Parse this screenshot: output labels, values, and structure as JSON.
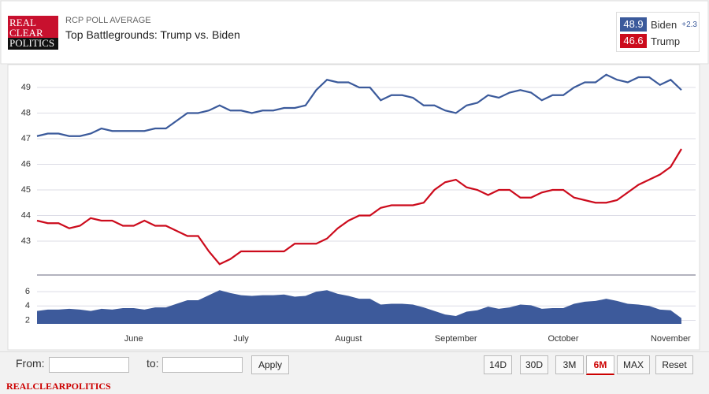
{
  "header": {
    "logo": [
      "REAL",
      "CLEAR",
      "POLITICS"
    ],
    "kicker": "RCP POLL AVERAGE",
    "title": "Top Battlegrounds: Trump vs. Biden"
  },
  "legend": {
    "spread": {
      "value": 2.3,
      "label": "+2.3"
    }
  },
  "chart_data": [
    {
      "type": "line",
      "series": [
        {
          "name": "Biden",
          "color": "#3b5a9b",
          "values": [
            47.1,
            47.2,
            47.2,
            47.1,
            47.1,
            47.2,
            47.4,
            47.3,
            47.3,
            47.3,
            47.3,
            47.4,
            47.4,
            47.7,
            48.0,
            48.0,
            48.1,
            48.3,
            48.1,
            48.1,
            48.0,
            48.1,
            48.1,
            48.2,
            48.2,
            48.3,
            48.9,
            49.3,
            49.2,
            49.2,
            49.0,
            49.0,
            48.5,
            48.7,
            48.7,
            48.6,
            48.3,
            48.3,
            48.1,
            48.0,
            48.3,
            48.4,
            48.7,
            48.6,
            48.8,
            48.9,
            48.8,
            48.5,
            48.7,
            48.7,
            49.0,
            49.2,
            49.2,
            49.5,
            49.3,
            49.2,
            49.4,
            49.4,
            49.1,
            49.3,
            48.9
          ]
        },
        {
          "name": "Trump",
          "color": "#cc0b1c",
          "values": [
            43.8,
            43.7,
            43.7,
            43.5,
            43.6,
            43.9,
            43.8,
            43.8,
            43.6,
            43.6,
            43.8,
            43.6,
            43.6,
            43.4,
            43.2,
            43.2,
            42.6,
            42.1,
            42.3,
            42.6,
            42.6,
            42.6,
            42.6,
            42.6,
            42.9,
            42.9,
            42.9,
            43.1,
            43.5,
            43.8,
            44.0,
            44.0,
            44.3,
            44.4,
            44.4,
            44.4,
            44.5,
            45.0,
            45.3,
            45.4,
            45.1,
            45.0,
            44.8,
            45.0,
            45.0,
            44.7,
            44.7,
            44.9,
            45.0,
            45.0,
            44.7,
            44.6,
            44.5,
            44.5,
            44.6,
            44.9,
            45.2,
            45.4,
            45.6,
            45.9,
            46.6
          ]
        }
      ],
      "ylim": [
        41.8,
        49.8
      ],
      "yticks": [
        43,
        44,
        45,
        46,
        47,
        48,
        49
      ],
      "grid": true
    },
    {
      "type": "area",
      "color": "#3d5a9b",
      "categories": [
        null,
        null,
        null,
        null,
        null,
        null,
        null,
        null,
        null,
        "June",
        null,
        null,
        null,
        null,
        null,
        null,
        null,
        null,
        null,
        "July",
        null,
        null,
        null,
        null,
        null,
        null,
        null,
        null,
        null,
        "August",
        null,
        null,
        null,
        null,
        null,
        null,
        null,
        null,
        null,
        "September",
        null,
        null,
        null,
        null,
        null,
        null,
        null,
        null,
        null,
        "October",
        null,
        null,
        null,
        null,
        null,
        null,
        null,
        null,
        null,
        "November",
        null
      ],
      "values": [
        3.3,
        3.5,
        3.5,
        3.6,
        3.5,
        3.3,
        3.6,
        3.5,
        3.7,
        3.7,
        3.5,
        3.8,
        3.8,
        4.3,
        4.8,
        4.8,
        5.5,
        6.2,
        5.8,
        5.5,
        5.4,
        5.5,
        5.5,
        5.6,
        5.3,
        5.4,
        6.0,
        6.2,
        5.7,
        5.4,
        5.0,
        5.0,
        4.2,
        4.3,
        4.3,
        4.2,
        3.8,
        3.3,
        2.8,
        2.6,
        3.2,
        3.4,
        3.9,
        3.6,
        3.8,
        4.2,
        4.1,
        3.6,
        3.7,
        3.7,
        4.3,
        4.6,
        4.7,
        5.0,
        4.7,
        4.3,
        4.2,
        4.0,
        3.5,
        3.4,
        2.3
      ],
      "ylim": [
        1.5,
        7
      ],
      "yticks": [
        2,
        4,
        6
      ],
      "grid": true
    }
  ],
  "controls": {
    "from": "From:",
    "to": "to:",
    "apply": "Apply",
    "ranges": [
      "14D",
      "30D",
      "3M",
      "6M",
      "MAX",
      "Reset"
    ],
    "active_range": 3
  },
  "footer": "REALCLEARPOLITICS"
}
